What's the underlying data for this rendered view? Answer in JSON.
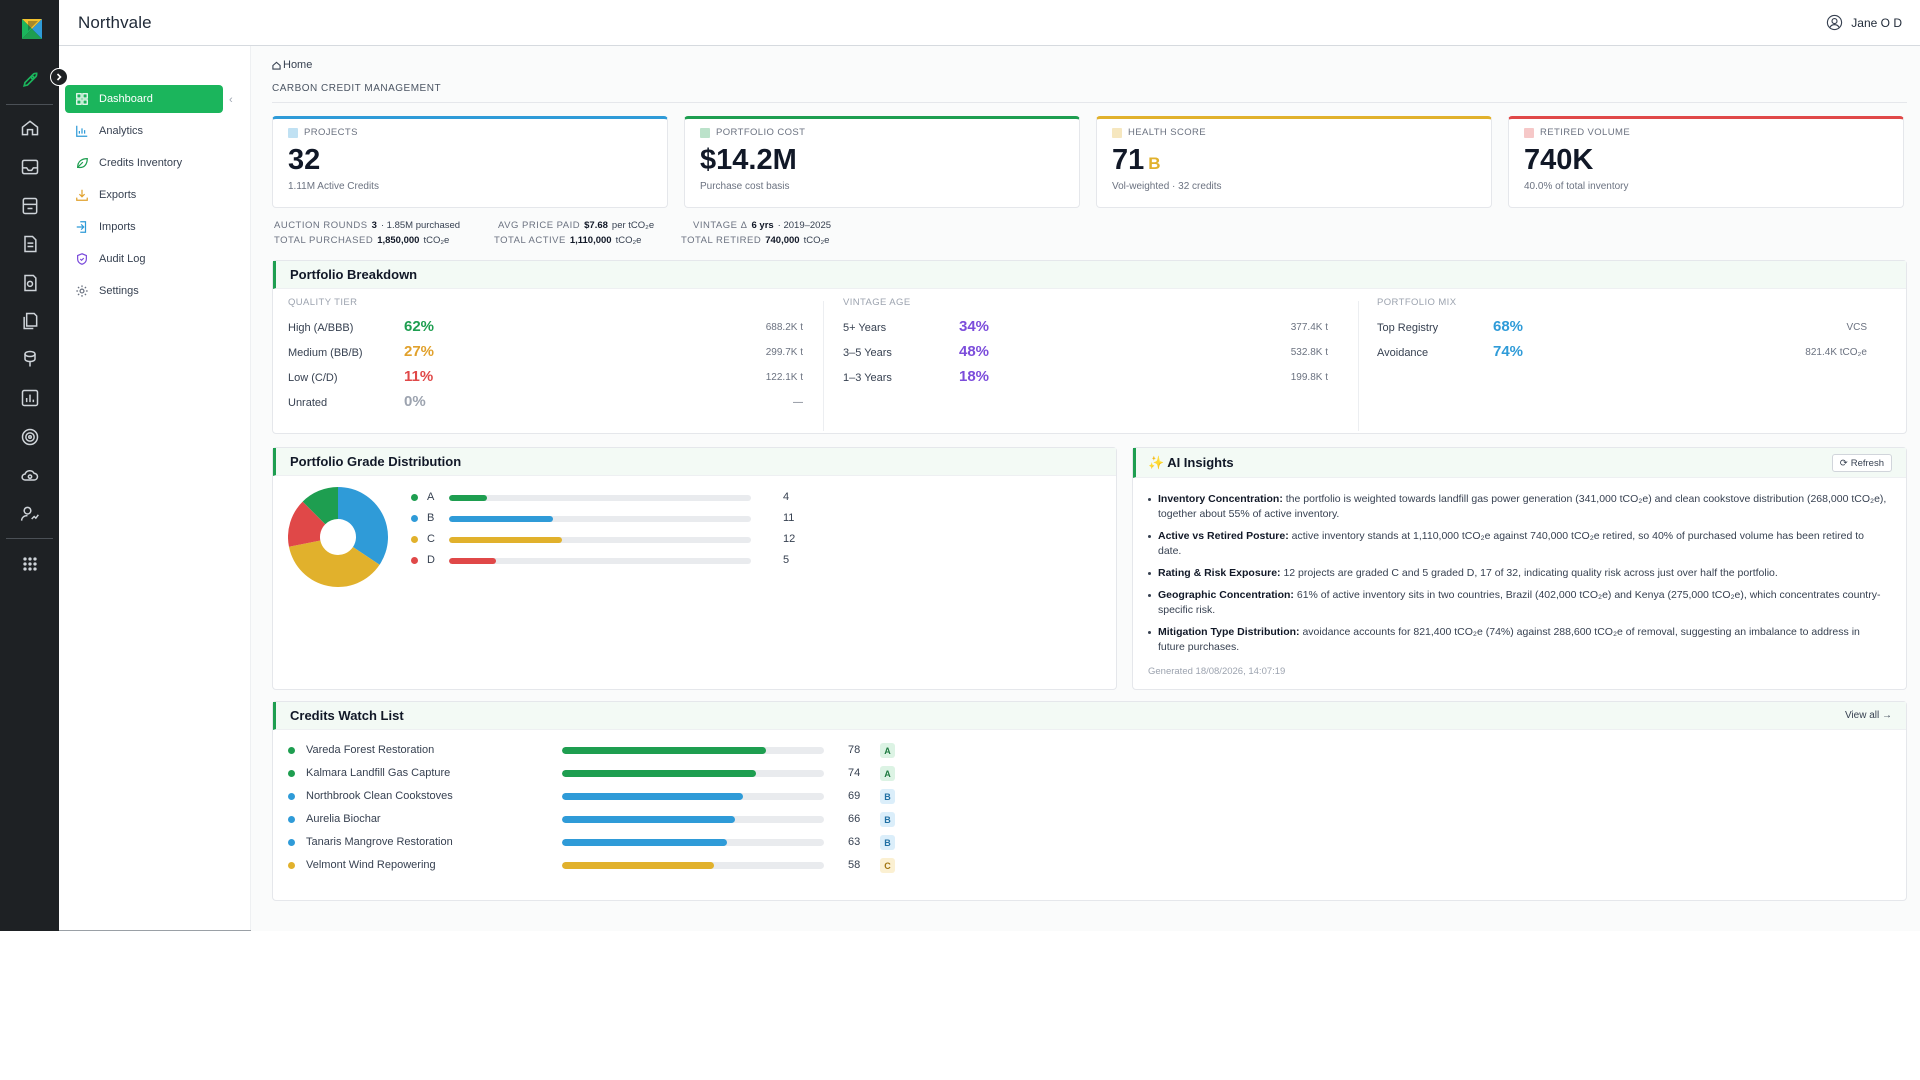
{
  "header": {
    "brand": "Northvale",
    "user_name": "Jane O D"
  },
  "rail": {
    "icons": [
      "logo-icon",
      "rocket-icon",
      "home-icon",
      "inbox-icon",
      "ledger-icon",
      "document-icon",
      "certificate-icon",
      "copy-icon",
      "coin-stack-icon",
      "bar-chart-icon",
      "target-icon",
      "cloud-settings-icon",
      "user-chart-icon",
      "apps-grid-icon"
    ]
  },
  "sidebar": {
    "items": [
      {
        "label": "Dashboard",
        "icon": "dashboard-icon",
        "active": true
      },
      {
        "label": "Analytics",
        "icon": "analytics-icon"
      },
      {
        "label": "Credits Inventory",
        "icon": "leaf-icon"
      },
      {
        "label": "Exports",
        "icon": "export-icon"
      },
      {
        "label": "Imports",
        "icon": "import-icon"
      },
      {
        "label": "Audit Log",
        "icon": "shield-icon"
      },
      {
        "label": "Settings",
        "icon": "gear-icon"
      }
    ],
    "accent": "#1bb55c"
  },
  "breadcrumb": {
    "home": "Home"
  },
  "page": {
    "subtitle": "CARBON CREDIT MANAGEMENT"
  },
  "kpis": [
    {
      "label": "PROJECTS",
      "value": "32",
      "grade": "",
      "sub": "1.11M Active Credits",
      "color": "#2f9bd8"
    },
    {
      "label": "PORTFOLIO COST",
      "value": "$14.2M",
      "grade": "",
      "sub": "Purchase cost basis",
      "color": "#1e9e50"
    },
    {
      "label": "HEALTH SCORE",
      "value": "71",
      "grade": "B",
      "sub": "Vol-weighted · 32 credits",
      "color": "#e1b12c"
    },
    {
      "label": "RETIRED VOLUME",
      "value": "740K",
      "grade": "",
      "sub": "40.0% of total inventory",
      "color": "#e04848"
    }
  ],
  "stats": {
    "auction_label": "AUCTION ROUNDS",
    "auction_value": "3",
    "auction_unit": "· 1.85M purchased",
    "avg_label": "AVG PRICE PAID",
    "avg_value": "$7.68",
    "avg_unit": "per tCO₂e",
    "vintage_label": "VINTAGE Δ",
    "vintage_value": "6 yrs",
    "vintage_unit": "· 2019–2025",
    "purchased_label": "TOTAL PURCHASED",
    "purchased_value": "1,850,000",
    "purchased_unit": "tCO₂e",
    "active_label": "TOTAL ACTIVE",
    "active_value": "1,110,000",
    "active_unit": "tCO₂e",
    "retired_label": "TOTAL RETIRED",
    "retired_value": "740,000",
    "retired_unit": "tCO₂e"
  },
  "breakdown": {
    "title": "Portfolio Breakdown",
    "quality": {
      "title": "QUALITY TIER",
      "rows": [
        {
          "label": "High (A/BBB)",
          "pct": "62%",
          "val": "688.2K t",
          "color": "#1e9e50"
        },
        {
          "label": "Medium (BB/B)",
          "pct": "27%",
          "val": "299.7K t",
          "color": "#e1a12c"
        },
        {
          "label": "Low (C/D)",
          "pct": "11%",
          "val": "122.1K t",
          "color": "#e04848"
        },
        {
          "label": "Unrated",
          "pct": "0%",
          "val": "—",
          "color": "#9ca3af"
        }
      ]
    },
    "vintage": {
      "title": "VINTAGE AGE",
      "rows": [
        {
          "label": "5+ Years",
          "pct": "34%",
          "val": "377.4K t",
          "color": "#7c4ddb"
        },
        {
          "label": "3–5 Years",
          "pct": "48%",
          "val": "532.8K t",
          "color": "#7c4ddb"
        },
        {
          "label": "1–3 Years",
          "pct": "18%",
          "val": "199.8K t",
          "color": "#7c4ddb"
        }
      ]
    },
    "mix": {
      "title": "PORTFOLIO MIX",
      "rows": [
        {
          "label": "Top Registry",
          "pct": "68%",
          "val": "VCS",
          "color": "#2f9bd8"
        },
        {
          "label": "Avoidance",
          "pct": "74%",
          "val": "821.4K tCO₂e",
          "color": "#2f9bd8"
        }
      ]
    }
  },
  "grade_dist": {
    "title": "Portfolio Grade Distribution",
    "rows": [
      {
        "label": "A",
        "count": "4",
        "value": 4,
        "color": "#1e9e50"
      },
      {
        "label": "B",
        "count": "11",
        "value": 11,
        "color": "#2f9bd8"
      },
      {
        "label": "C",
        "count": "12",
        "value": 12,
        "color": "#e1b12c"
      },
      {
        "label": "D",
        "count": "5",
        "value": 5,
        "color": "#e04848"
      }
    ],
    "max": 32
  },
  "ai": {
    "title": "AI Insights",
    "refresh": "Refresh",
    "items": [
      {
        "head": "Inventory Concentration:",
        "text": " the portfolio is weighted towards landfill gas power generation (341,000 tCO₂e) and clean cookstove distribution (268,000 tCO₂e), together about 55% of active inventory."
      },
      {
        "head": "Active vs Retired Posture:",
        "text": " active inventory stands at 1,110,000 tCO₂e against 740,000 tCO₂e retired, so 40% of purchased volume has been retired to date."
      },
      {
        "head": "Rating & Risk Exposure:",
        "text": " 12 projects are graded C and 5 graded D, 17 of 32, indicating quality risk across just over half the portfolio."
      },
      {
        "head": "Geographic Concentration:",
        "text": " 61% of active inventory sits in two countries, Brazil (402,000 tCO₂e) and Kenya (275,000 tCO₂e), which concentrates country-specific risk."
      },
      {
        "head": "Mitigation Type Distribution:",
        "text": " avoidance accounts for 821,400 tCO₂e (74%) against 288,600 tCO₂e of removal, suggesting an imbalance to address in future purchases."
      }
    ],
    "generated": "Generated 18/08/2026, 14:07:19"
  },
  "watchlist": {
    "title": "Credits Watch List",
    "view_all": "View all →",
    "rows": [
      {
        "name": "Vareda Forest Restoration",
        "score": "78",
        "value": 78,
        "grade": "A",
        "color": "#1e9e50",
        "badge_bg": "#dcf3e4",
        "badge_fg": "#1e7a40"
      },
      {
        "name": "Kalmara Landfill Gas Capture",
        "score": "74",
        "value": 74,
        "grade": "A",
        "color": "#1e9e50",
        "badge_bg": "#dcf3e4",
        "badge_fg": "#1e7a40"
      },
      {
        "name": "Northbrook Clean Cookstoves",
        "score": "69",
        "value": 69,
        "grade": "B",
        "color": "#2f9bd8",
        "badge_bg": "#dbeefa",
        "badge_fg": "#1f6fa3"
      },
      {
        "name": "Aurelia Biochar",
        "score": "66",
        "value": 66,
        "grade": "B",
        "color": "#2f9bd8",
        "badge_bg": "#dbeefa",
        "badge_fg": "#1f6fa3"
      },
      {
        "name": "Tanaris Mangrove Restoration",
        "score": "63",
        "value": 63,
        "grade": "B",
        "color": "#2f9bd8",
        "badge_bg": "#dbeefa",
        "badge_fg": "#1f6fa3"
      },
      {
        "name": "Velmont Wind Repowering",
        "score": "58",
        "value": 58,
        "grade": "C",
        "color": "#e1b12c",
        "badge_bg": "#fbf0d2",
        "badge_fg": "#a07410"
      }
    ]
  }
}
